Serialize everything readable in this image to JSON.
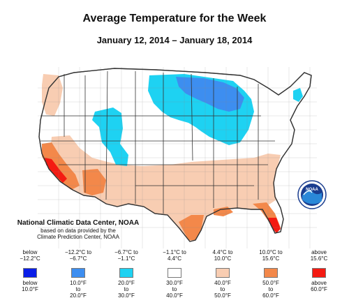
{
  "title": "Average Temperature for the Week",
  "subtitle": "January 12, 2014 – January 18, 2014",
  "credit": {
    "line1": "National Climatic Data Center, NOAA",
    "line2": "based on data provided by the",
    "line3": "Climate Prediction Center, NOAA"
  },
  "logo": {
    "text": "NOAA",
    "icon": "noaa-logo-icon"
  },
  "legend": [
    {
      "celsius_line1": "below",
      "celsius_line2": "−12.2°C",
      "fahrenheit_line1": "below",
      "fahrenheit_line2": "10.0°F",
      "color": "#0a1ee8"
    },
    {
      "celsius_line1": "−12.2°C to",
      "celsius_line2": "−6.7°C",
      "fahrenheit_line1": "10.0°F",
      "fahrenheit_line2": "to",
      "fahrenheit_line3": "20.0°F",
      "color": "#3d8ef0"
    },
    {
      "celsius_line1": "−6.7°C to",
      "celsius_line2": "−1.1°C",
      "fahrenheit_line1": "20.0°F",
      "fahrenheit_line2": "to",
      "fahrenheit_line3": "30.0°F",
      "color": "#1ed2f2"
    },
    {
      "celsius_line1": "−1.1°C to",
      "celsius_line2": "4.4°C",
      "fahrenheit_line1": "30.0°F",
      "fahrenheit_line2": "to",
      "fahrenheit_line3": "40.0°F",
      "color": "#ffffff"
    },
    {
      "celsius_line1": "4.4°C to",
      "celsius_line2": "10.0°C",
      "fahrenheit_line1": "40.0°F",
      "fahrenheit_line2": "to",
      "fahrenheit_line3": "50.0°F",
      "color": "#f8cdb2"
    },
    {
      "celsius_line1": "10.0°C to",
      "celsius_line2": "15.6°C",
      "fahrenheit_line1": "50.0°F",
      "fahrenheit_line2": "to",
      "fahrenheit_line3": "60.0°F",
      "color": "#f3884a"
    },
    {
      "celsius_line1": "above",
      "celsius_line2": "15.6°C",
      "fahrenheit_line1": "above",
      "fahrenheit_line2": "60.0°F",
      "color": "#f41a12"
    }
  ],
  "colors": {
    "below_m12": "#0a1ee8",
    "m12_m7": "#3d8ef0",
    "m7_m1": "#1ed2f2",
    "m1_4": "#ffffff",
    "4_10": "#f8cdb2",
    "10_16": "#f3884a",
    "above_16": "#f41a12",
    "outline": "#555555"
  }
}
